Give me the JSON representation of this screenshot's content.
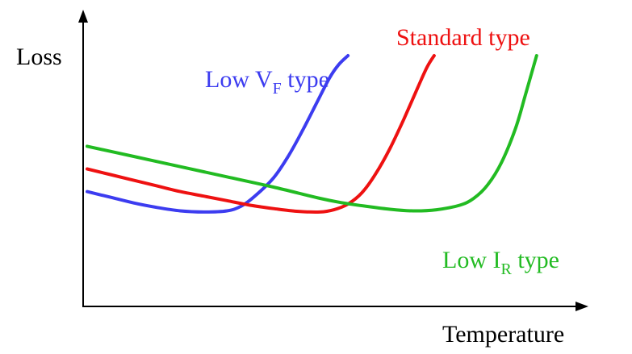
{
  "chart_data": {
    "type": "line",
    "title": "",
    "xlabel": "Temperature",
    "ylabel": "Loss",
    "grid": false,
    "legend": "none",
    "xlim": [
      0,
      100
    ],
    "ylim": [
      0,
      100
    ],
    "ticks": {
      "x": [],
      "y": []
    },
    "series": [
      {
        "name": "Low VF type",
        "label_main": "Low V",
        "label_sub": "F",
        "label_rest": " type",
        "color": "#3c3cf0",
        "x": [
          0,
          5,
          10,
          15,
          20,
          25,
          30,
          33,
          36,
          40,
          43,
          46,
          49,
          52,
          54,
          56
        ],
        "y": [
          40,
          37.5,
          35,
          33,
          31.5,
          31,
          31.5,
          33.5,
          38,
          46,
          55,
          66,
          78,
          90,
          96,
          100
        ]
      },
      {
        "name": "Standard type",
        "label_main": "Standard type",
        "label_sub": "",
        "label_rest": "",
        "color": "#ee1111",
        "x": [
          0,
          5,
          10,
          15,
          20,
          25,
          30,
          35,
          40,
          45,
          50,
          53,
          56,
          59,
          62,
          65,
          68,
          71,
          73,
          74.5
        ],
        "y": [
          50,
          47.5,
          45,
          42.5,
          40,
          38,
          36,
          34,
          32.5,
          31.3,
          31,
          32,
          34.5,
          39.5,
          48,
          59,
          72,
          86,
          95,
          100
        ]
      },
      {
        "name": "Low IR type",
        "label_main": "Low I",
        "label_sub": "R",
        "label_rest": " type",
        "color": "#22bb22",
        "x": [
          0,
          10,
          20,
          30,
          40,
          50,
          55,
          60,
          65,
          70,
          75,
          80,
          83,
          86,
          89,
          92,
          94,
          96.5
        ],
        "y": [
          60,
          55.5,
          51,
          46.5,
          42,
          37,
          35,
          33.5,
          32.2,
          31.5,
          32,
          34,
          37,
          43,
          53,
          68,
          82,
          100
        ]
      }
    ]
  }
}
